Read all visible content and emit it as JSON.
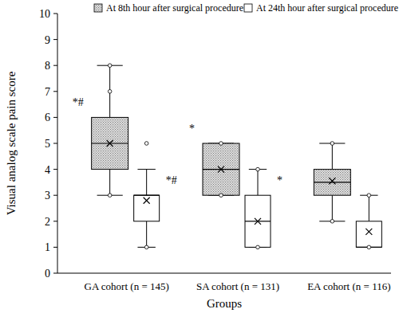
{
  "chart_data": {
    "type": "box",
    "x_label": "Groups",
    "y_label": "Visual analog scale pain score",
    "categories": [
      "GA cohort (n = 145)",
      "SA cohort (n = 131)",
      "EA cohort (n = 116)"
    ],
    "ylim": [
      0,
      10
    ],
    "yticks": [
      0,
      1,
      2,
      3,
      4,
      5,
      6,
      7,
      8,
      9,
      10
    ],
    "legend": "top",
    "series": [
      {
        "name": "At 8th hour after surgical procedure",
        "color": "#808080",
        "min": [
          3,
          3,
          2
        ],
        "q1": [
          4,
          3,
          3
        ],
        "median": [
          5,
          4,
          3.5
        ],
        "q3": [
          6,
          5,
          4
        ],
        "max": [
          8,
          5,
          5
        ],
        "mean": [
          5.0,
          4.0,
          3.55
        ],
        "outliers": [
          [
            3,
            7,
            8
          ],
          [
            3,
            5
          ],
          [
            2,
            5
          ]
        ],
        "annotations": [
          "*#",
          "*",
          null
        ]
      },
      {
        "name": "At 24th hour after surgical procedure",
        "color": "#ffffff",
        "min": [
          1,
          1,
          1
        ],
        "q1": [
          2,
          1,
          1
        ],
        "median": [
          3,
          2,
          1
        ],
        "q3": [
          3,
          3,
          2
        ],
        "max": [
          4,
          4,
          3
        ],
        "mean": [
          2.8,
          2.0,
          1.6
        ],
        "outliers": [
          [
            1,
            5
          ],
          [
            1,
            4
          ],
          [
            1,
            3
          ]
        ],
        "annotations": [
          "*#",
          "*",
          null
        ]
      }
    ]
  }
}
